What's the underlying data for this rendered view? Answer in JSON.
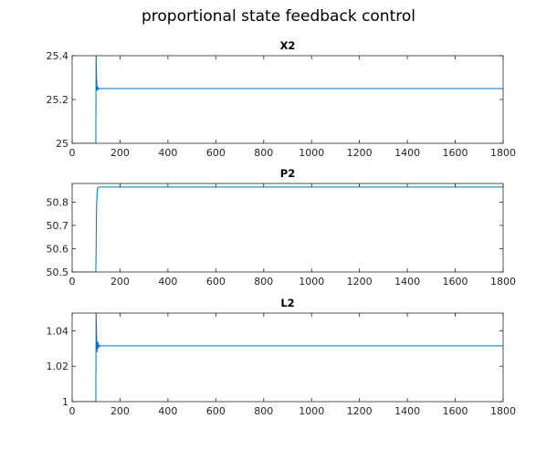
{
  "figure": {
    "title": "proportional state feedback control"
  },
  "chart_data": [
    {
      "type": "line",
      "title": "X2",
      "xlabel": "",
      "ylabel": "",
      "xlim": [
        0,
        1800
      ],
      "ylim": [
        25,
        25.4
      ],
      "xticks": [
        0,
        200,
        400,
        600,
        800,
        1000,
        1200,
        1400,
        1600,
        1800
      ],
      "yticks": [
        25,
        25.2,
        25.4
      ],
      "ytick_labels": [
        "25",
        "25.2",
        "25.4"
      ],
      "grid": false,
      "color": "#0072bd",
      "series": [
        {
          "x": [
            0,
            99,
            100,
            100.5,
            101,
            102,
            103,
            104,
            106,
            108,
            110,
            115,
            120,
            140,
            200,
            400,
            600,
            800,
            1000,
            1200,
            1400,
            1600,
            1800
          ],
          "y": [
            25.0,
            25.0,
            25.4,
            25.4,
            25.36,
            25.3,
            25.27,
            25.24,
            25.26,
            25.245,
            25.252,
            25.248,
            25.25,
            25.25,
            25.25,
            25.25,
            25.25,
            25.25,
            25.25,
            25.25,
            25.25,
            25.25,
            25.25
          ]
        }
      ]
    },
    {
      "type": "line",
      "title": "P2",
      "xlabel": "",
      "ylabel": "",
      "xlim": [
        0,
        1800
      ],
      "ylim": [
        50.5,
        50.88
      ],
      "xticks": [
        0,
        200,
        400,
        600,
        800,
        1000,
        1200,
        1400,
        1600,
        1800
      ],
      "yticks": [
        50.5,
        50.6,
        50.7,
        50.8
      ],
      "ytick_labels": [
        "50.5",
        "50.6",
        "50.7",
        "50.8"
      ],
      "grid": false,
      "color": "#0072bd",
      "series": [
        {
          "x": [
            0,
            99,
            100,
            101,
            102,
            104,
            106,
            108,
            110,
            120,
            200,
            400,
            600,
            800,
            1000,
            1200,
            1400,
            1600,
            1800
          ],
          "y": [
            50.5,
            50.5,
            50.58,
            50.7,
            50.78,
            50.83,
            50.86,
            50.862,
            50.864,
            50.865,
            50.865,
            50.865,
            50.865,
            50.865,
            50.865,
            50.865,
            50.865,
            50.865,
            50.865
          ]
        }
      ]
    },
    {
      "type": "line",
      "title": "L2",
      "xlabel": "",
      "ylabel": "",
      "xlim": [
        0,
        1800
      ],
      "ylim": [
        1.0,
        1.05
      ],
      "xticks": [
        0,
        200,
        400,
        600,
        800,
        1000,
        1200,
        1400,
        1600,
        1800
      ],
      "yticks": [
        1.0,
        1.02,
        1.04
      ],
      "ytick_labels": [
        "1",
        "1.02",
        "1.04"
      ],
      "grid": false,
      "color": "#0072bd",
      "series": [
        {
          "x": [
            0,
            99,
            100,
            100.5,
            101,
            102,
            103,
            104,
            106,
            108,
            110,
            115,
            120,
            140,
            200,
            400,
            600,
            800,
            1000,
            1200,
            1400,
            1600,
            1800
          ],
          "y": [
            1.0,
            1.0,
            1.05,
            1.05,
            1.045,
            1.038,
            1.033,
            1.028,
            1.034,
            1.03,
            1.0325,
            1.031,
            1.0315,
            1.0315,
            1.0315,
            1.0315,
            1.0315,
            1.0315,
            1.0315,
            1.0315,
            1.0315,
            1.0315,
            1.0315
          ]
        }
      ]
    }
  ]
}
